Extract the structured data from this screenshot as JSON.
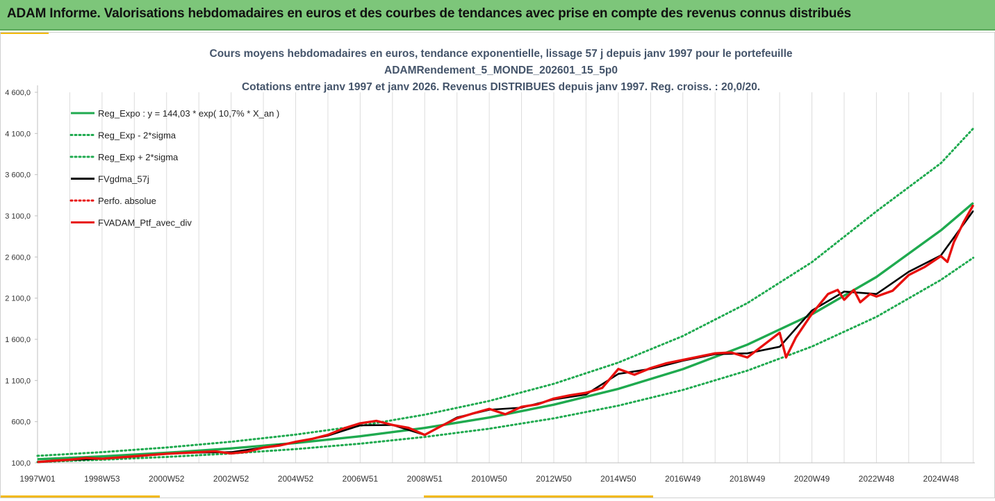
{
  "banner": {
    "title": "ADAM Informe. Valorisations hebdomadaires en euros et des courbes de tendances avec prise en compte des revenus connus distribués"
  },
  "colors": {
    "banner_bg": "#7dc67a",
    "accent": "#f2b90c",
    "reg_green": "#1faa4f",
    "fvg_black": "#000000",
    "ptf_red": "#e8100e"
  },
  "chart_data": {
    "type": "line",
    "title_lines": [
      "Cours moyens hebdomadaires  en euros, tendance exponentielle, lissage 57 j depuis janv 1997 pour le portefeuille",
      "ADAMRendement_5_MONDE_202601_15_5p0",
      "Cotations entre janv 1997 et janv 2026. Revenus DISTRIBUES depuis janv 1997. Reg. croiss. : 20,0/20."
    ],
    "x_range": [
      1997.0,
      2026.05
    ],
    "x_ticks": [
      {
        "x": 1997.0,
        "label": "1997W01"
      },
      {
        "x": 1999.0,
        "label": "1998W53"
      },
      {
        "x": 2001.0,
        "label": "2000W52"
      },
      {
        "x": 2003.0,
        "label": "2002W52"
      },
      {
        "x": 2005.0,
        "label": "2004W52"
      },
      {
        "x": 2007.0,
        "label": "2006W51"
      },
      {
        "x": 2009.0,
        "label": "2008W51"
      },
      {
        "x": 2011.0,
        "label": "2010W50"
      },
      {
        "x": 2013.0,
        "label": "2012W50"
      },
      {
        "x": 2015.0,
        "label": "2014W50"
      },
      {
        "x": 2017.0,
        "label": "2016W49"
      },
      {
        "x": 2019.0,
        "label": "2018W49"
      },
      {
        "x": 2021.0,
        "label": "2020W49"
      },
      {
        "x": 2023.0,
        "label": "2022W48"
      },
      {
        "x": 2025.0,
        "label": "2024W48"
      }
    ],
    "y_range": [
      100,
      4600
    ],
    "y_ticks": [
      {
        "v": 100,
        "label": "100,0"
      },
      {
        "v": 600,
        "label": "600,0"
      },
      {
        "v": 1100,
        "label": "1 100,0"
      },
      {
        "v": 1600,
        "label": "1 600,0"
      },
      {
        "v": 2100,
        "label": "2 100,0"
      },
      {
        "v": 2600,
        "label": "2 600,0"
      },
      {
        "v": 3100,
        "label": "3 100,0"
      },
      {
        "v": 3600,
        "label": "3 600,0"
      },
      {
        "v": 4100,
        "label": "4 100,0"
      },
      {
        "v": 4600,
        "label": "4 600,0"
      }
    ],
    "grid": "vertical",
    "legend_position": "top-left",
    "series": [
      {
        "name": "Reg_Expo : y = 144,03 * exp( 10,7% *  X_an )",
        "color": "#1faa4f",
        "style": "solid",
        "points": [
          [
            1997.0,
            144
          ],
          [
            1999.0,
            178
          ],
          [
            2001.0,
            222
          ],
          [
            2003.0,
            275
          ],
          [
            2005.0,
            341
          ],
          [
            2007.0,
            423
          ],
          [
            2009.0,
            524
          ],
          [
            2011.0,
            650
          ],
          [
            2013.0,
            806
          ],
          [
            2015.0,
            998
          ],
          [
            2017.0,
            1238
          ],
          [
            2019.0,
            1535
          ],
          [
            2021.0,
            1903
          ],
          [
            2023.0,
            2358
          ],
          [
            2025.0,
            2924
          ],
          [
            2026.0,
            3256
          ]
        ]
      },
      {
        "name": "Reg_Exp - 2*sigma",
        "color": "#1faa4f",
        "style": "dotted",
        "points": [
          [
            1997.0,
            110
          ],
          [
            1999.0,
            138
          ],
          [
            2001.0,
            172
          ],
          [
            2003.0,
            214
          ],
          [
            2005.0,
            267
          ],
          [
            2007.0,
            333
          ],
          [
            2009.0,
            414
          ],
          [
            2011.0,
            515
          ],
          [
            2013.0,
            640
          ],
          [
            2015.0,
            794
          ],
          [
            2017.0,
            985
          ],
          [
            2019.0,
            1220
          ],
          [
            2021.0,
            1512
          ],
          [
            2023.0,
            1873
          ],
          [
            2025.0,
            2322
          ],
          [
            2026.0,
            2590
          ]
        ]
      },
      {
        "name": "Reg_Exp + 2*sigma",
        "color": "#1faa4f",
        "style": "dotted",
        "points": [
          [
            1997.0,
            185
          ],
          [
            1999.0,
            230
          ],
          [
            2001.0,
            286
          ],
          [
            2003.0,
            356
          ],
          [
            2005.0,
            443
          ],
          [
            2007.0,
            551
          ],
          [
            2009.0,
            685
          ],
          [
            2011.0,
            852
          ],
          [
            2013.0,
            1060
          ],
          [
            2015.0,
            1318
          ],
          [
            2017.0,
            1640
          ],
          [
            2019.0,
            2040
          ],
          [
            2021.0,
            2537
          ],
          [
            2023.0,
            3155
          ],
          [
            2025.0,
            3740
          ],
          [
            2026.0,
            4160
          ]
        ]
      },
      {
        "name": "FVgdma_57j",
        "color": "#000000",
        "style": "solid",
        "points": [
          [
            1997.0,
            108
          ],
          [
            1998.0,
            135
          ],
          [
            1999.0,
            150
          ],
          [
            2000.0,
            175
          ],
          [
            2001.0,
            210
          ],
          [
            2002.0,
            225
          ],
          [
            2003.0,
            230
          ],
          [
            2004.0,
            285
          ],
          [
            2005.0,
            350
          ],
          [
            2006.0,
            430
          ],
          [
            2007.0,
            555
          ],
          [
            2008.0,
            560
          ],
          [
            2009.0,
            440
          ],
          [
            2010.0,
            650
          ],
          [
            2011.0,
            745
          ],
          [
            2012.0,
            770
          ],
          [
            2013.0,
            870
          ],
          [
            2014.0,
            930
          ],
          [
            2015.0,
            1180
          ],
          [
            2016.0,
            1240
          ],
          [
            2017.0,
            1340
          ],
          [
            2018.0,
            1420
          ],
          [
            2019.0,
            1430
          ],
          [
            2020.0,
            1510
          ],
          [
            2021.0,
            1950
          ],
          [
            2022.0,
            2180
          ],
          [
            2023.0,
            2150
          ],
          [
            2024.0,
            2420
          ],
          [
            2025.0,
            2620
          ],
          [
            2026.0,
            3160
          ]
        ]
      },
      {
        "name": "Perfo. absolue",
        "color": "#e8100e",
        "style": "dotted",
        "points": []
      },
      {
        "name": "FVADAM_Ptf_avec_div",
        "color": "#e8100e",
        "style": "solid",
        "points": [
          [
            1997.0,
            110
          ],
          [
            1997.5,
            125
          ],
          [
            1998.0,
            138
          ],
          [
            1998.5,
            158
          ],
          [
            1999.0,
            150
          ],
          [
            1999.5,
            165
          ],
          [
            2000.0,
            180
          ],
          [
            2000.5,
            195
          ],
          [
            2001.0,
            210
          ],
          [
            2001.5,
            220
          ],
          [
            2002.0,
            230
          ],
          [
            2002.5,
            240
          ],
          [
            2003.0,
            215
          ],
          [
            2003.5,
            235
          ],
          [
            2004.0,
            285
          ],
          [
            2004.5,
            310
          ],
          [
            2005.0,
            355
          ],
          [
            2005.5,
            390
          ],
          [
            2006.0,
            440
          ],
          [
            2006.5,
            520
          ],
          [
            2007.0,
            580
          ],
          [
            2007.5,
            610
          ],
          [
            2008.0,
            560
          ],
          [
            2008.5,
            525
          ],
          [
            2009.0,
            440
          ],
          [
            2009.5,
            545
          ],
          [
            2010.0,
            640
          ],
          [
            2010.5,
            700
          ],
          [
            2011.0,
            755
          ],
          [
            2011.5,
            690
          ],
          [
            2012.0,
            780
          ],
          [
            2012.5,
            810
          ],
          [
            2013.0,
            880
          ],
          [
            2013.5,
            920
          ],
          [
            2014.0,
            950
          ],
          [
            2014.5,
            1010
          ],
          [
            2015.0,
            1240
          ],
          [
            2015.5,
            1170
          ],
          [
            2016.0,
            1250
          ],
          [
            2016.5,
            1310
          ],
          [
            2017.0,
            1350
          ],
          [
            2017.5,
            1390
          ],
          [
            2018.0,
            1430
          ],
          [
            2018.5,
            1440
          ],
          [
            2019.0,
            1380
          ],
          [
            2019.5,
            1530
          ],
          [
            2020.0,
            1680
          ],
          [
            2020.2,
            1380
          ],
          [
            2020.5,
            1620
          ],
          [
            2021.0,
            1910
          ],
          [
            2021.5,
            2150
          ],
          [
            2021.8,
            2200
          ],
          [
            2022.0,
            2080
          ],
          [
            2022.3,
            2200
          ],
          [
            2022.5,
            2050
          ],
          [
            2022.8,
            2150
          ],
          [
            2023.0,
            2120
          ],
          [
            2023.5,
            2190
          ],
          [
            2024.0,
            2380
          ],
          [
            2024.5,
            2480
          ],
          [
            2025.0,
            2610
          ],
          [
            2025.2,
            2540
          ],
          [
            2025.4,
            2780
          ],
          [
            2025.7,
            3020
          ],
          [
            2026.0,
            3230
          ]
        ]
      }
    ]
  }
}
